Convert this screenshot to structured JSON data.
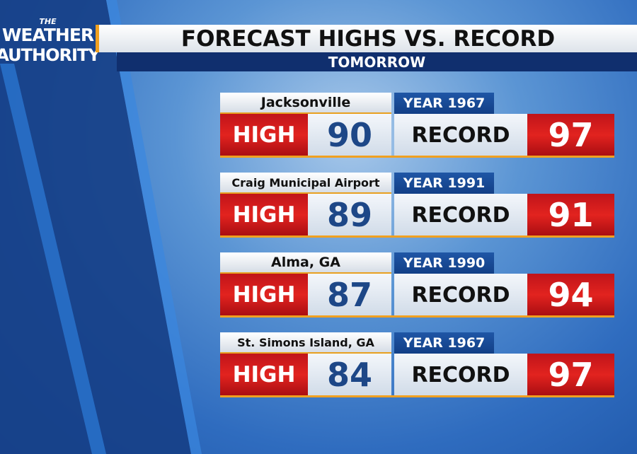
{
  "logo": {
    "line1": "THE",
    "line2": "WEATHER",
    "line3": "AUTHORITY"
  },
  "header": {
    "title": "FORECAST HIGHS VS. RECORD",
    "subtitle": "TOMORROW"
  },
  "rows": [
    {
      "location": "Jacksonville",
      "year": "YEAR 1967",
      "high_label": "HIGH",
      "high": 90,
      "record_label": "RECORD",
      "record": 97
    },
    {
      "location": "Craig Municipal Airport",
      "year": "YEAR 1991",
      "high_label": "HIGH",
      "high": 89,
      "record_label": "RECORD",
      "record": 91
    },
    {
      "location": "Alma, GA",
      "year": "YEAR 1990",
      "high_label": "HIGH",
      "high": 87,
      "record_label": "RECORD",
      "record": 94
    },
    {
      "location": "St. Simons Island, GA",
      "year": "YEAR 1967",
      "high_label": "HIGH",
      "high": 84,
      "record_label": "RECORD",
      "record": 97
    }
  ]
}
